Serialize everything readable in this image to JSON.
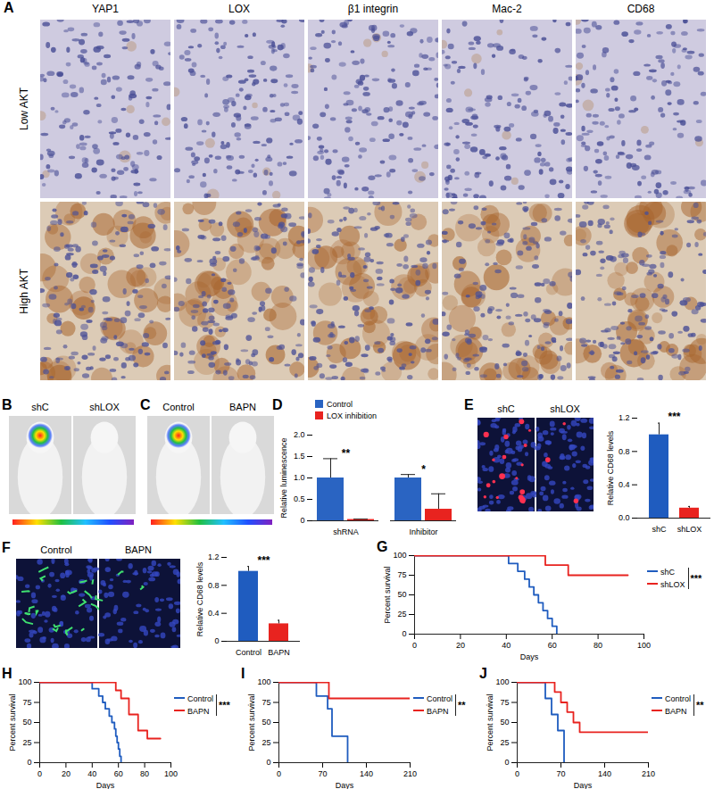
{
  "image_panels": {
    "A": {
      "title": "A",
      "columns": [
        "YAP1",
        "LOX",
        "β1 integrin",
        "Mac-2",
        "CD68"
      ],
      "rows": [
        "Low AKT",
        "High AKT"
      ]
    },
    "B": {
      "title": "B",
      "labels": [
        "shC",
        "shLOX"
      ]
    },
    "C": {
      "title": "C",
      "labels": [
        "Control",
        "BAPN"
      ]
    },
    "E": {
      "labels": [
        "shC",
        "shLOX"
      ]
    },
    "F": {
      "labels": [
        "Control",
        "BAPN"
      ]
    }
  },
  "chart_data": [
    {
      "title": "D",
      "type": "bar",
      "categories": [
        "shRNA",
        "Inhibitor"
      ],
      "series": [
        {
          "name": "Control",
          "color": "#2a64c2",
          "values": [
            1.0,
            1.0
          ],
          "errors": [
            0.45,
            0.08
          ]
        },
        {
          "name": "LOX inhibition",
          "color": "#e8231f",
          "values": [
            0.03,
            0.27
          ],
          "errors": [
            0.01,
            0.36
          ]
        }
      ],
      "y_label": "Relative luminescence",
      "ylim": [
        0,
        2
      ],
      "yticks": [
        0,
        0.5,
        {
          "value": 1,
          "label": "1.0"
        },
        1.5,
        {
          "value": 2,
          "label": "2.0"
        }
      ],
      "legend": "top-left",
      "annotations": [
        {
          "text": "**",
          "category": "shRNA"
        },
        {
          "text": "*",
          "category": "Inhibitor"
        }
      ]
    },
    {
      "title": "E",
      "type": "bar",
      "categories": [
        "shC",
        "shLOX"
      ],
      "values": [
        1.0,
        0.12
      ],
      "errors": [
        0.14,
        0.02
      ],
      "colors": [
        "#1f5cbf",
        "#e8231f"
      ],
      "y_label": "Relative CD68 levels",
      "ylim": [
        0,
        1.2
      ],
      "yticks": [
        {
          "value": 0,
          "label": "0.0"
        },
        0.4,
        0.8,
        1.2
      ],
      "annotations": [
        {
          "text": "***"
        }
      ]
    },
    {
      "title": "F",
      "type": "bar",
      "categories": [
        "Control",
        "BAPN"
      ],
      "values": [
        1.0,
        0.25
      ],
      "errors": [
        0.07,
        0.05
      ],
      "colors": [
        "#1f5cbf",
        "#e8231f"
      ],
      "y_label": "Relative CD68 levels",
      "ylim": [
        0,
        1.2
      ],
      "yticks": [
        0,
        0.4,
        0.8,
        1.2
      ],
      "annotations": [
        {
          "text": "***"
        }
      ]
    },
    {
      "title": "G",
      "type": "line",
      "line_style": "step",
      "x_label": "Days",
      "y_label": "Percent survival",
      "xlim": [
        0,
        100
      ],
      "xticks": [
        0,
        20,
        40,
        60,
        80,
        100
      ],
      "ylim": [
        0,
        100
      ],
      "yticks": [
        0,
        25,
        50,
        75,
        100
      ],
      "legend": "right",
      "series": [
        {
          "name": "shC",
          "color": "#1f5cbf",
          "x": [
            0,
            41,
            45,
            48,
            50,
            52,
            54,
            56,
            58,
            60,
            62
          ],
          "values": [
            100,
            90,
            80,
            70,
            60,
            50,
            40,
            30,
            20,
            10,
            0
          ]
        },
        {
          "name": "shLOX",
          "color": "#e8231f",
          "x": [
            0,
            57,
            67,
            93
          ],
          "values": [
            100,
            88,
            75,
            75
          ]
        }
      ],
      "annotations": [
        {
          "text": "***"
        }
      ]
    },
    {
      "title": "H",
      "type": "line",
      "line_style": "step",
      "x_label": "Days",
      "y_label": "Percent survival",
      "xlim": [
        0,
        100
      ],
      "xticks": [
        0,
        20,
        40,
        60,
        80,
        100
      ],
      "ylim": [
        0,
        100
      ],
      "yticks": [
        0,
        25,
        50,
        75,
        100
      ],
      "legend": "right",
      "series": [
        {
          "name": "Control",
          "color": "#1f5cbf",
          "x": [
            0,
            40,
            45,
            48,
            50,
            53,
            55,
            57,
            58,
            59,
            60,
            61,
            62
          ],
          "values": [
            100,
            92,
            83,
            75,
            67,
            58,
            50,
            42,
            33,
            25,
            17,
            8,
            0
          ]
        },
        {
          "name": "BAPN",
          "color": "#e8231f",
          "x": [
            0,
            58,
            62,
            68,
            75,
            82,
            92
          ],
          "values": [
            100,
            90,
            80,
            60,
            40,
            30,
            30
          ]
        }
      ],
      "annotations": [
        {
          "text": "***"
        }
      ]
    },
    {
      "title": "I",
      "type": "line",
      "line_style": "step",
      "x_label": "Days",
      "y_label": "Percent survival",
      "xlim": [
        0,
        210
      ],
      "xticks": [
        0,
        70,
        140,
        210
      ],
      "ylim": [
        0,
        100
      ],
      "yticks": [
        0,
        25,
        50,
        75,
        100
      ],
      "legend": "right",
      "series": [
        {
          "name": "Control",
          "color": "#1f5cbf",
          "x": [
            0,
            60,
            78,
            85,
            110
          ],
          "values": [
            100,
            83,
            67,
            33,
            0
          ]
        },
        {
          "name": "BAPN",
          "color": "#e8231f",
          "x": [
            0,
            80,
            210
          ],
          "values": [
            100,
            80,
            80
          ]
        }
      ],
      "annotations": [
        {
          "text": "**"
        }
      ]
    },
    {
      "title": "J",
      "type": "line",
      "line_style": "step",
      "x_label": "Days",
      "y_label": "Percent survival",
      "xlim": [
        0,
        210
      ],
      "xticks": [
        0,
        70,
        140,
        210
      ],
      "ylim": [
        0,
        100
      ],
      "yticks": [
        0,
        25,
        50,
        75,
        100
      ],
      "legend": "right",
      "series": [
        {
          "name": "Control",
          "color": "#1f5cbf",
          "x": [
            0,
            45,
            55,
            65,
            75
          ],
          "values": [
            100,
            80,
            60,
            40,
            0
          ]
        },
        {
          "name": "BAPN",
          "color": "#e8231f",
          "x": [
            0,
            60,
            70,
            80,
            90,
            100,
            210
          ],
          "values": [
            100,
            88,
            75,
            63,
            50,
            38,
            38
          ]
        }
      ],
      "annotations": [
        {
          "text": "**"
        }
      ]
    }
  ]
}
